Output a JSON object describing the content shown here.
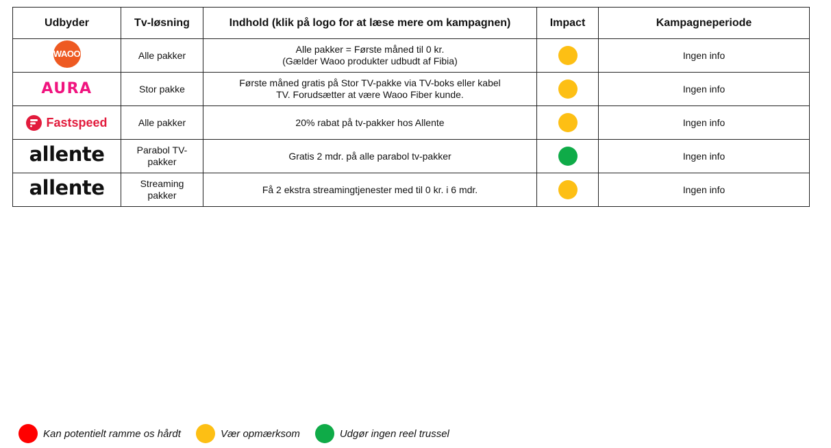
{
  "table": {
    "headers": [
      "Udbyder",
      "Tv-løsning",
      "Indhold (klik på logo for at læse mere om kampagnen)",
      "Impact",
      "Kampagneperiode"
    ],
    "rows": [
      {
        "provider": {
          "logo": "waoo-logo",
          "text": "WAOO"
        },
        "tv_solution": "Alle pakker",
        "content": [
          "Alle pakker = Første måned til 0 kr.",
          "(Gælder Waoo produkter udbudt af Fibia)"
        ],
        "impact": "yellow",
        "period": "Ingen info"
      },
      {
        "provider": {
          "logo": "aura-logo",
          "text": "AURA"
        },
        "tv_solution": "Stor pakke",
        "content": [
          "Første måned gratis på Stor TV-pakke via TV-boks eller kabel",
          "TV. Forudsætter at være Waoo Fiber kunde."
        ],
        "impact": "yellow",
        "period": "Ingen info"
      },
      {
        "provider": {
          "logo": "fastspeed-logo",
          "text": "Fastspeed"
        },
        "tv_solution": "Alle pakker",
        "content": [
          "20% rabat på tv-pakker hos Allente"
        ],
        "impact": "yellow",
        "period": "Ingen info"
      },
      {
        "provider": {
          "logo": "allente-logo",
          "text": "allente"
        },
        "tv_solution": "Parabol TV-\npakker",
        "content": [
          "Gratis 2 mdr. på alle parabol tv-pakker"
        ],
        "impact": "green",
        "period": "Ingen info"
      },
      {
        "provider": {
          "logo": "allente-logo",
          "text": "allente"
        },
        "tv_solution": "Streaming\npakker",
        "content": [
          "Få 2 ekstra streamingtjenester med til 0 kr. i 6 mdr."
        ],
        "impact": "yellow",
        "period": "Ingen info"
      }
    ]
  },
  "legend": [
    {
      "color": "red",
      "label": "Kan potentielt ramme os hårdt"
    },
    {
      "color": "yellow",
      "label": "Vær opmærksom"
    },
    {
      "color": "green",
      "label": "Udgør ingen reel trussel"
    }
  ],
  "colors": {
    "red": "#ff0000",
    "yellow": "#fdbf14",
    "green": "#0fab48",
    "waoo": "#ee5a22",
    "aura": "#f0147f",
    "fastspeed": "#e21b3c"
  }
}
